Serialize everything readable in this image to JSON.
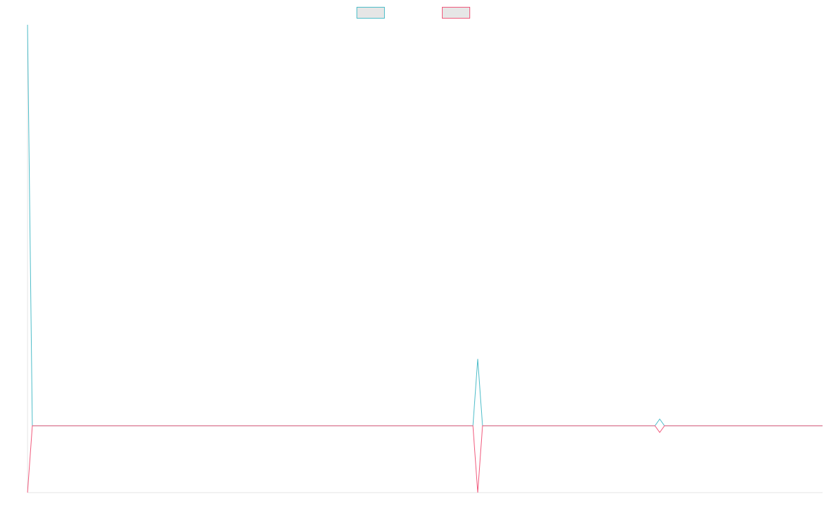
{
  "chart_data": {
    "type": "line",
    "title": "",
    "xlabel": "",
    "ylabel": "",
    "legend_position": "top-center",
    "grid": false,
    "x": [
      0,
      1,
      2,
      3,
      4,
      5,
      6,
      7,
      8,
      9,
      10,
      11,
      12,
      13,
      14,
      15,
      16,
      17,
      18,
      19,
      20,
      21,
      22,
      23,
      24,
      25,
      26,
      27,
      28,
      29,
      30,
      31,
      32,
      33,
      34,
      35,
      36,
      37,
      38,
      39,
      40,
      41,
      42,
      43,
      44,
      45,
      46,
      47,
      48,
      49,
      50,
      51,
      52,
      53,
      54,
      55,
      56,
      57,
      58,
      59,
      60,
      61,
      62,
      63,
      64,
      65,
      66,
      67,
      68,
      69,
      70,
      71,
      72,
      73,
      74,
      75,
      76,
      77,
      78,
      79,
      80,
      81,
      82,
      83,
      84,
      85,
      86,
      87,
      88,
      89,
      90,
      91,
      92,
      93,
      94,
      95,
      96,
      97,
      98,
      99,
      100,
      101,
      102,
      103,
      104,
      105,
      106,
      107,
      108,
      109,
      110,
      111,
      112,
      113,
      114,
      115,
      116,
      117,
      118,
      119,
      120,
      121,
      122,
      123,
      124,
      125,
      126,
      127,
      128,
      129,
      130,
      131,
      132,
      133,
      134,
      135,
      136,
      137,
      138,
      139,
      140,
      141,
      142,
      143,
      144,
      145,
      146,
      147,
      148,
      149,
      150,
      151,
      152,
      153,
      154,
      155,
      156,
      157,
      158,
      159,
      160,
      161,
      162,
      163,
      164,
      165,
      166
    ],
    "xlim": [
      0,
      166
    ],
    "ylim": [
      -1,
      6
    ],
    "series": [
      {
        "color": "#4bbcc8",
        "values": [
          6,
          0,
          0,
          0,
          0,
          0,
          0,
          0,
          0,
          0,
          0,
          0,
          0,
          0,
          0,
          0,
          0,
          0,
          0,
          0,
          0,
          0,
          0,
          0,
          0,
          0,
          0,
          0,
          0,
          0,
          0,
          0,
          0,
          0,
          0,
          0,
          0,
          0,
          0,
          0,
          0,
          0,
          0,
          0,
          0,
          0,
          0,
          0,
          0,
          0,
          0,
          0,
          0,
          0,
          0,
          0,
          0,
          0,
          0,
          0,
          0,
          0,
          0,
          0,
          0,
          0,
          0,
          0,
          0,
          0,
          0,
          0,
          0,
          0,
          0,
          0,
          0,
          0,
          0,
          0,
          0,
          0,
          0,
          0,
          0,
          0,
          0,
          0,
          0,
          0,
          0,
          0,
          0,
          0,
          1,
          0,
          0,
          0,
          0,
          0,
          0,
          0,
          0,
          0,
          0,
          0,
          0,
          0,
          0,
          0,
          0,
          0,
          0,
          0,
          0,
          0,
          0,
          0,
          0,
          0,
          0,
          0,
          0,
          0,
          0,
          0,
          0,
          0,
          0,
          0,
          0,
          0,
          0.1,
          0,
          0,
          0,
          0,
          0,
          0,
          0,
          0,
          0,
          0,
          0,
          0,
          0,
          0,
          0,
          0,
          0,
          0,
          0,
          0,
          0,
          0,
          0,
          0,
          0,
          0,
          0,
          0,
          0,
          0,
          0,
          0,
          0,
          0
        ]
      },
      {
        "color": "#f0577a",
        "values": [
          -1,
          0,
          0,
          0,
          0,
          0,
          0,
          0,
          0,
          0,
          0,
          0,
          0,
          0,
          0,
          0,
          0,
          0,
          0,
          0,
          0,
          0,
          0,
          0,
          0,
          0,
          0,
          0,
          0,
          0,
          0,
          0,
          0,
          0,
          0,
          0,
          0,
          0,
          0,
          0,
          0,
          0,
          0,
          0,
          0,
          0,
          0,
          0,
          0,
          0,
          0,
          0,
          0,
          0,
          0,
          0,
          0,
          0,
          0,
          0,
          0,
          0,
          0,
          0,
          0,
          0,
          0,
          0,
          0,
          0,
          0,
          0,
          0,
          0,
          0,
          0,
          0,
          0,
          0,
          0,
          0,
          0,
          0,
          0,
          0,
          0,
          0,
          0,
          0,
          0,
          0,
          0,
          0,
          0,
          -1,
          0,
          0,
          0,
          0,
          0,
          0,
          0,
          0,
          0,
          0,
          0,
          0,
          0,
          0,
          0,
          0,
          0,
          0,
          0,
          0,
          0,
          0,
          0,
          0,
          0,
          0,
          0,
          0,
          0,
          0,
          0,
          0,
          0,
          0,
          0,
          0,
          0,
          -0.1,
          0,
          0,
          0,
          0,
          0,
          0,
          0,
          0,
          0,
          0,
          0,
          0,
          0,
          0,
          0,
          0,
          0,
          0,
          0,
          0,
          0,
          0,
          0,
          0,
          0,
          0,
          0,
          0,
          0,
          0,
          0,
          0,
          0,
          0
        ]
      }
    ]
  },
  "legend": {
    "fill_color": "#e6e6e6"
  }
}
